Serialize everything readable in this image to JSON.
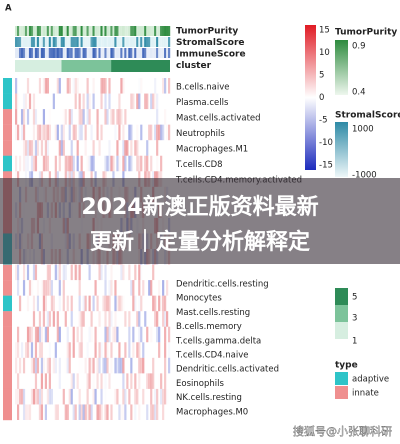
{
  "panel_label": "A",
  "annotations": [
    "TumorPurity",
    "StromalScore",
    "ImmuneScore",
    "cluster"
  ],
  "rows_top": [
    "B.cells.naive",
    "Plasma.cells",
    "Mast.cells.activated",
    "Neutrophils",
    "Macrophages.M1",
    "T.cells.CD8",
    "T.cells.CD4.memory.activated"
  ],
  "rows_bottom": [
    "Dendritic.cells.resting",
    "Monocytes",
    "Mast.cells.resting",
    "B.cells.memory",
    "T.cells.gamma.delta",
    "T.cells.CD4.naive",
    "Dendritic.cells.activated",
    "Eosinophils",
    "NK.cells.resting",
    "Macrophages.M0"
  ],
  "color_scale": {
    "ticks": [
      "15",
      "10",
      "5",
      "0",
      "-5",
      "-10",
      "-15"
    ]
  },
  "legends": {
    "tumor_purity": {
      "title": "TumorPurity",
      "labels": [
        "0.9",
        "0.4"
      ]
    },
    "stromal_score": {
      "title": "StromalScore",
      "labels": [
        "1000",
        "-1000"
      ]
    },
    "cluster": {
      "labels": [
        "5",
        "3",
        "1"
      ]
    },
    "type": {
      "title": "type",
      "labels": [
        "adaptive",
        "innate"
      ]
    }
  },
  "banner": {
    "lines": [
      "2024新澳正版资料最新",
      "更新｜定量分析解释定"
    ]
  },
  "watermark": "搜狐号@小张聊科研"
}
